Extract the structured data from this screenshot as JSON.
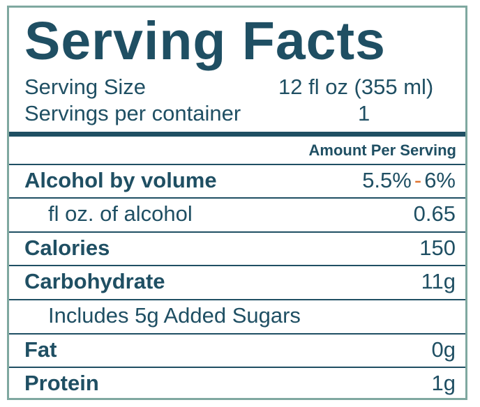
{
  "label": {
    "title": "Serving Facts",
    "serving_size_label": "Serving Size",
    "serving_size_value": "12 fl oz (355 ml)",
    "servings_label": "Servings per container",
    "servings_value": "1",
    "amount_header": "Amount Per Serving",
    "rows": [
      {
        "name": "Alcohol by volume",
        "value_low": "5.5%",
        "dash": "-",
        "value_high": "6%"
      },
      {
        "name": "fl oz. of alcohol",
        "value": "0.65"
      },
      {
        "name": "Calories",
        "value": "150"
      },
      {
        "name": "Carbohydrate",
        "value": "11g"
      },
      {
        "name": "Includes 5g Added Sugars",
        "value": ""
      },
      {
        "name": "Fat",
        "value": "0g"
      },
      {
        "name": "Protein",
        "value": "1g"
      }
    ]
  },
  "colors": {
    "text": "#1f4f63",
    "border": "#7fa8a0",
    "accent_dash": "#e0702a"
  }
}
